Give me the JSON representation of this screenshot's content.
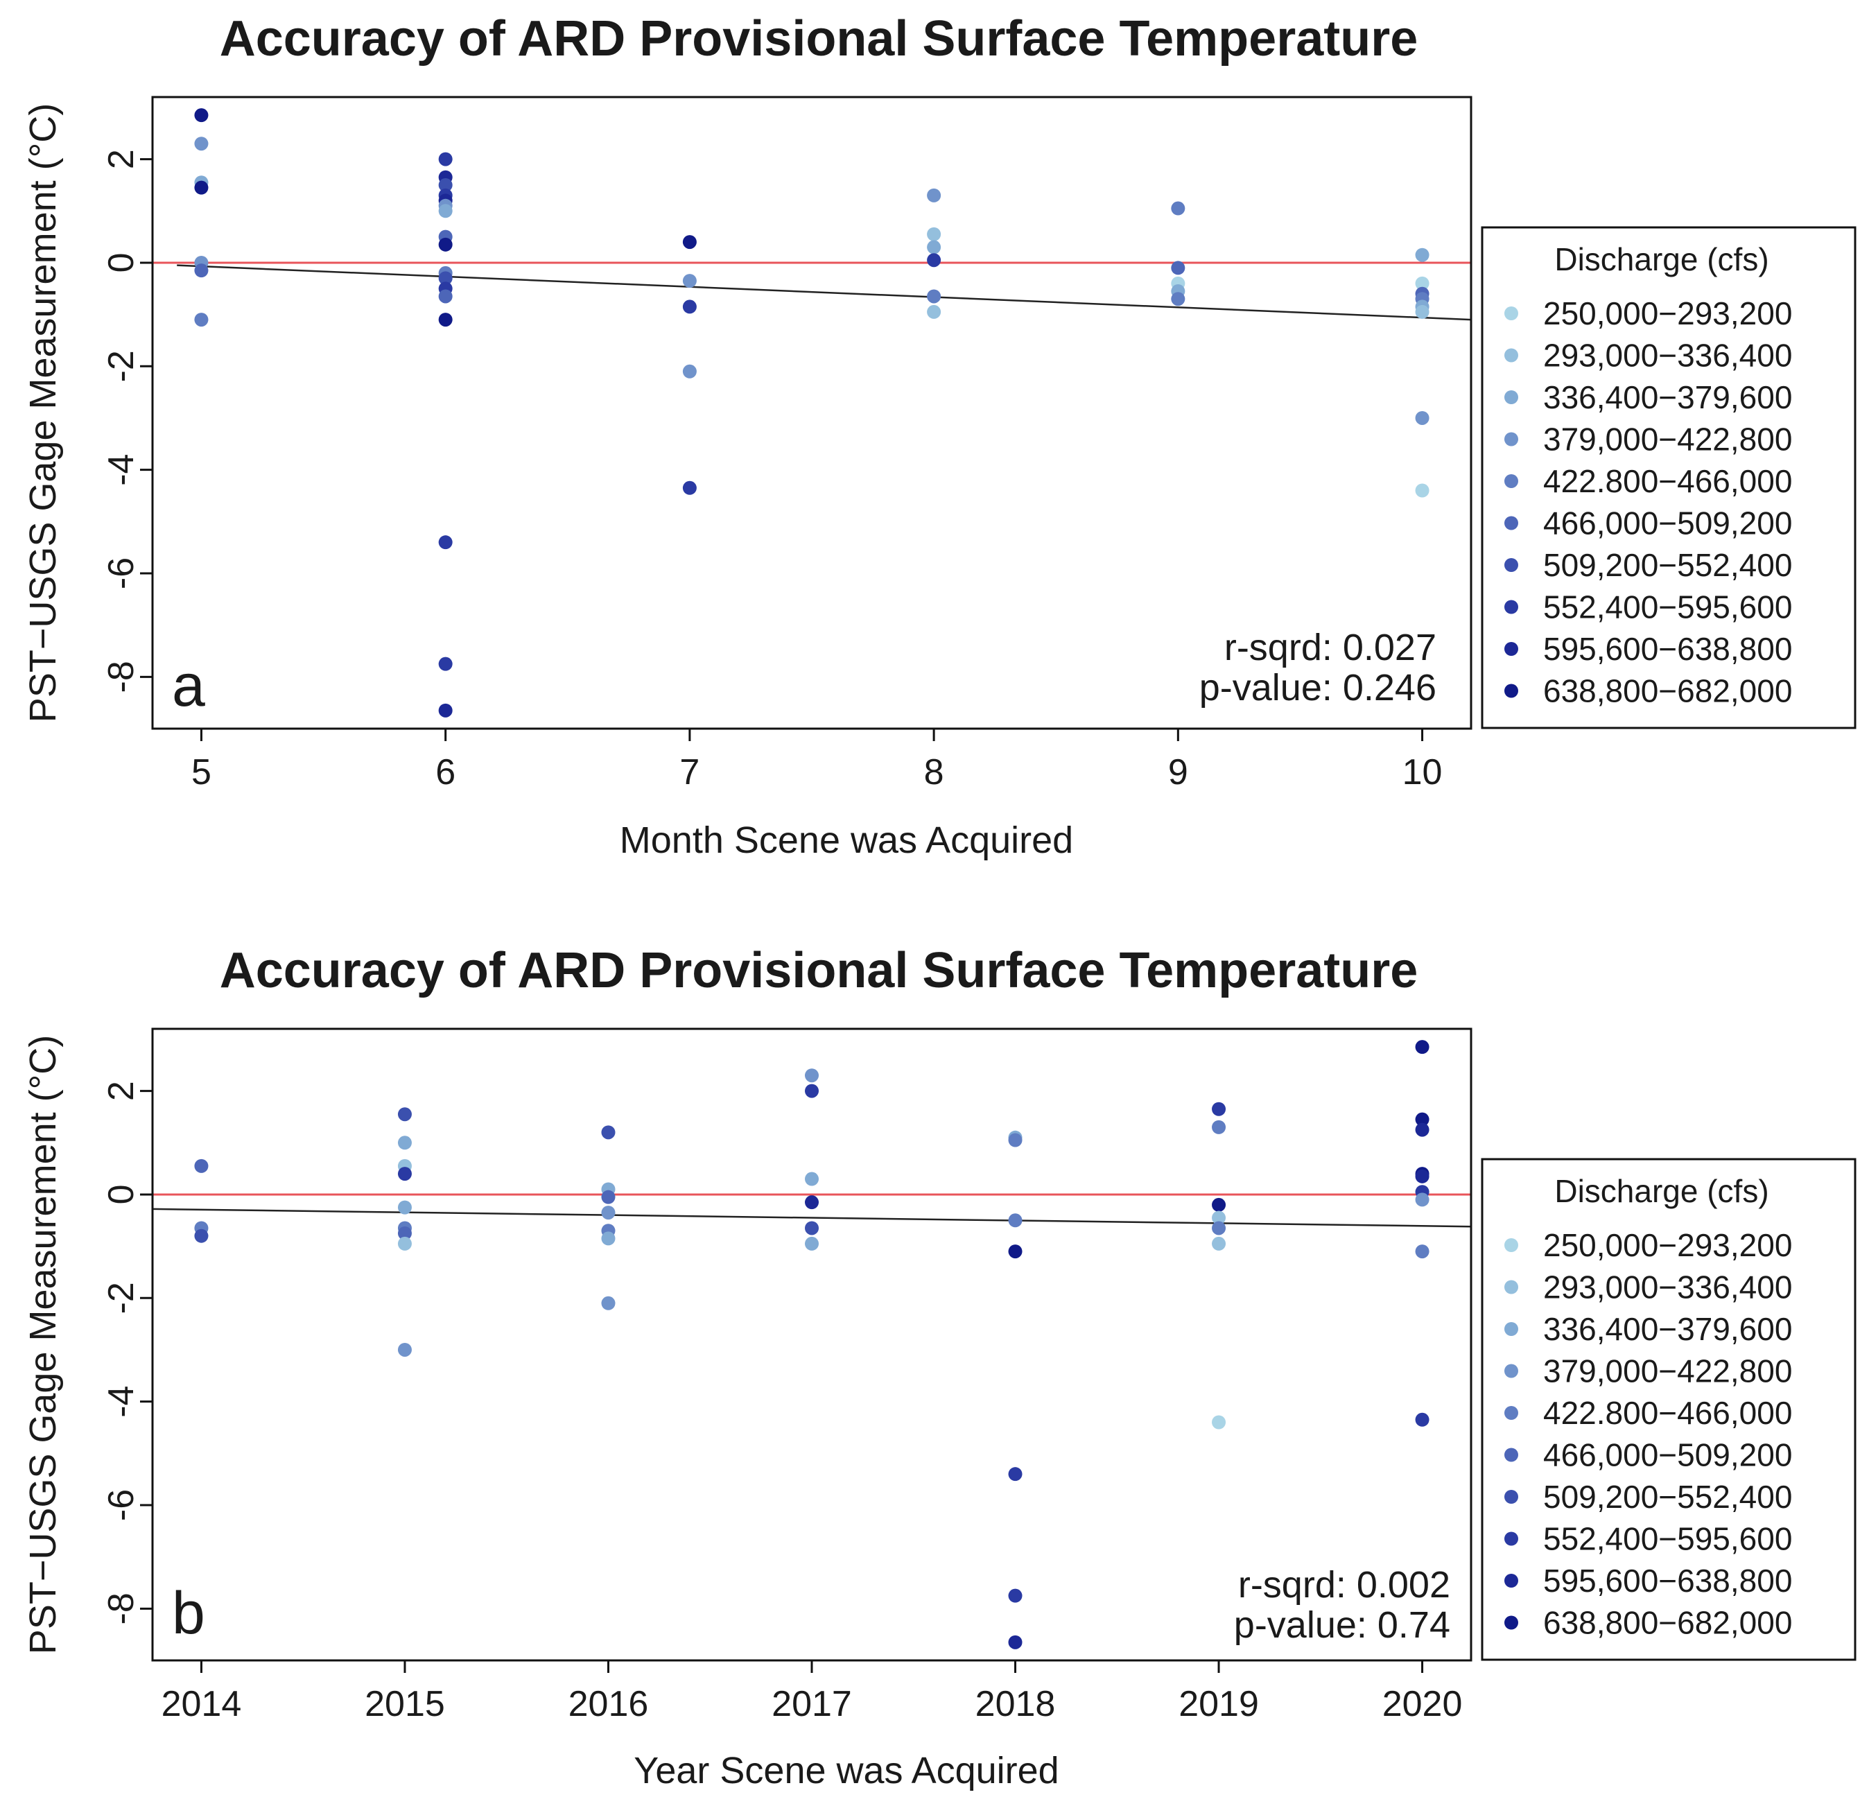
{
  "colors": {
    "zero_line": "#e8545a",
    "trend_line": "#222222",
    "frame": "#111111",
    "bins": [
      "#a9d4e6",
      "#94bfdd",
      "#80aad4",
      "#7093cb",
      "#5f7dc2",
      "#4d66b8",
      "#3b50ae",
      "#2a3aa3",
      "#1c2896",
      "#101a88"
    ]
  },
  "chart_data": [
    {
      "type": "scatter",
      "panel": "a",
      "title": "Accuracy of ARD Provisional Surface Temperature",
      "xlabel": "Month Scene was Acquired",
      "ylabel": "PST−USGS Gage Measurement (°C)",
      "xlim": [
        4.8,
        10.2
      ],
      "ylim": [
        -9.0,
        3.2
      ],
      "xticks": [
        {
          "value": 5,
          "label": "5"
        },
        {
          "value": 6,
          "label": "6"
        },
        {
          "value": 7,
          "label": "7"
        },
        {
          "value": 8,
          "label": "8"
        },
        {
          "value": 9,
          "label": "9"
        },
        {
          "value": 10,
          "label": "10"
        }
      ],
      "yticks": [
        {
          "value": 2,
          "label": "2"
        },
        {
          "value": 0,
          "label": "0"
        },
        {
          "value": -2,
          "label": "-2"
        },
        {
          "value": -4,
          "label": "-4"
        },
        {
          "value": -6,
          "label": "-6"
        },
        {
          "value": -8,
          "label": "-8"
        }
      ],
      "zero_line": 0,
      "trend": {
        "x": [
          4.9,
          10.2
        ],
        "y": [
          -0.05,
          -1.1
        ]
      },
      "stats": {
        "r_sqrd": "r-sqrd: 0.027",
        "p_value": "p-value: 0.246"
      },
      "legend": {
        "title": "Discharge (cfs)",
        "entries": [
          "250,000−293,200",
          "293,000−336,400",
          "336,400−379,600",
          "379,000−422,800",
          "422.800−466,000",
          "466,000−509,200",
          "509,200−552,400",
          "552,400−595,600",
          "595,600−638,800",
          "638,800−682,000"
        ]
      },
      "points": [
        {
          "x": 5,
          "y": 2.85,
          "bin": 9
        },
        {
          "x": 5,
          "y": 2.3,
          "bin": 3
        },
        {
          "x": 5,
          "y": 1.55,
          "bin": 2
        },
        {
          "x": 5,
          "y": 1.45,
          "bin": 9
        },
        {
          "x": 5,
          "y": 0.0,
          "bin": 3
        },
        {
          "x": 5,
          "y": -0.15,
          "bin": 5
        },
        {
          "x": 5,
          "y": -1.1,
          "bin": 4
        },
        {
          "x": 6,
          "y": 2.0,
          "bin": 7
        },
        {
          "x": 6,
          "y": 1.65,
          "bin": 8
        },
        {
          "x": 6,
          "y": 1.5,
          "bin": 6
        },
        {
          "x": 6,
          "y": 1.3,
          "bin": 7
        },
        {
          "x": 6,
          "y": 1.2,
          "bin": 8
        },
        {
          "x": 6,
          "y": 1.1,
          "bin": 3
        },
        {
          "x": 6,
          "y": 1.0,
          "bin": 2
        },
        {
          "x": 6,
          "y": 0.5,
          "bin": 5
        },
        {
          "x": 6,
          "y": 0.35,
          "bin": 9
        },
        {
          "x": 6,
          "y": -0.2,
          "bin": 4
        },
        {
          "x": 6,
          "y": -0.3,
          "bin": 6
        },
        {
          "x": 6,
          "y": -0.5,
          "bin": 7
        },
        {
          "x": 6,
          "y": -0.65,
          "bin": 5
        },
        {
          "x": 6,
          "y": -1.1,
          "bin": 9
        },
        {
          "x": 6,
          "y": -5.4,
          "bin": 7
        },
        {
          "x": 6,
          "y": -7.75,
          "bin": 7
        },
        {
          "x": 6,
          "y": -8.65,
          "bin": 8
        },
        {
          "x": 7,
          "y": 0.4,
          "bin": 9
        },
        {
          "x": 7,
          "y": -0.35,
          "bin": 3
        },
        {
          "x": 7,
          "y": -0.85,
          "bin": 7
        },
        {
          "x": 7,
          "y": -2.1,
          "bin": 3
        },
        {
          "x": 7,
          "y": -4.35,
          "bin": 7
        },
        {
          "x": 8,
          "y": 1.3,
          "bin": 3
        },
        {
          "x": 8,
          "y": 0.55,
          "bin": 1
        },
        {
          "x": 8,
          "y": 0.3,
          "bin": 2
        },
        {
          "x": 8,
          "y": 0.05,
          "bin": 7
        },
        {
          "x": 8,
          "y": -0.65,
          "bin": 4
        },
        {
          "x": 8,
          "y": -0.95,
          "bin": 1
        },
        {
          "x": 9,
          "y": 1.05,
          "bin": 4
        },
        {
          "x": 9,
          "y": -0.1,
          "bin": 5
        },
        {
          "x": 9,
          "y": -0.4,
          "bin": 0
        },
        {
          "x": 9,
          "y": -0.55,
          "bin": 2
        },
        {
          "x": 9,
          "y": -0.7,
          "bin": 4
        },
        {
          "x": 10,
          "y": 0.15,
          "bin": 2
        },
        {
          "x": 10,
          "y": -0.4,
          "bin": 0
        },
        {
          "x": 10,
          "y": -0.6,
          "bin": 5
        },
        {
          "x": 10,
          "y": -0.7,
          "bin": 4
        },
        {
          "x": 10,
          "y": -0.85,
          "bin": 2
        },
        {
          "x": 10,
          "y": -0.95,
          "bin": 1
        },
        {
          "x": 10,
          "y": -3.0,
          "bin": 3
        },
        {
          "x": 10,
          "y": -4.4,
          "bin": 0
        }
      ]
    },
    {
      "type": "scatter",
      "panel": "b",
      "title": "Accuracy of ARD Provisional Surface Temperature",
      "xlabel": "Year Scene was Acquired",
      "ylabel": "PST−USGS Gage Measurement (°C)",
      "xlim": [
        2013.76,
        2020.24
      ],
      "ylim": [
        -9.0,
        3.2
      ],
      "xticks": [
        {
          "value": 2014,
          "label": "2014"
        },
        {
          "value": 2015,
          "label": "2015"
        },
        {
          "value": 2016,
          "label": "2016"
        },
        {
          "value": 2017,
          "label": "2017"
        },
        {
          "value": 2018,
          "label": "2018"
        },
        {
          "value": 2019,
          "label": "2019"
        },
        {
          "value": 2020,
          "label": "2020"
        }
      ],
      "yticks": [
        {
          "value": 2,
          "label": "2"
        },
        {
          "value": 0,
          "label": "0"
        },
        {
          "value": -2,
          "label": "-2"
        },
        {
          "value": -4,
          "label": "-4"
        },
        {
          "value": -6,
          "label": "-6"
        },
        {
          "value": -8,
          "label": "-8"
        }
      ],
      "zero_line": 0,
      "trend": {
        "x": [
          2013.76,
          2020.24
        ],
        "y": [
          -0.28,
          -0.62
        ]
      },
      "stats": {
        "r_sqrd": "r-sqrd: 0.002",
        "p_value": "p-value: 0.74"
      },
      "legend": {
        "title": "Discharge (cfs)",
        "entries": [
          "250,000−293,200",
          "293,000−336,400",
          "336,400−379,600",
          "379,000−422,800",
          "422.800−466,000",
          "466,000−509,200",
          "509,200−552,400",
          "552,400−595,600",
          "595,600−638,800",
          "638,800−682,000"
        ]
      },
      "points": [
        {
          "x": 2014,
          "y": 0.55,
          "bin": 5
        },
        {
          "x": 2014,
          "y": -0.65,
          "bin": 4
        },
        {
          "x": 2014,
          "y": -0.8,
          "bin": 6
        },
        {
          "x": 2015,
          "y": 1.55,
          "bin": 6
        },
        {
          "x": 2015,
          "y": 1.0,
          "bin": 2
        },
        {
          "x": 2015,
          "y": 0.55,
          "bin": 1
        },
        {
          "x": 2015,
          "y": 0.4,
          "bin": 7
        },
        {
          "x": 2015,
          "y": -0.25,
          "bin": 2
        },
        {
          "x": 2015,
          "y": -0.65,
          "bin": 4
        },
        {
          "x": 2015,
          "y": -0.75,
          "bin": 5
        },
        {
          "x": 2015,
          "y": -0.95,
          "bin": 1
        },
        {
          "x": 2015,
          "y": -3.0,
          "bin": 3
        },
        {
          "x": 2016,
          "y": 1.2,
          "bin": 6
        },
        {
          "x": 2016,
          "y": 0.1,
          "bin": 2
        },
        {
          "x": 2016,
          "y": -0.05,
          "bin": 5
        },
        {
          "x": 2016,
          "y": -0.35,
          "bin": 3
        },
        {
          "x": 2016,
          "y": -0.7,
          "bin": 4
        },
        {
          "x": 2016,
          "y": -0.85,
          "bin": 2
        },
        {
          "x": 2016,
          "y": -2.1,
          "bin": 3
        },
        {
          "x": 2017,
          "y": 2.3,
          "bin": 3
        },
        {
          "x": 2017,
          "y": 2.0,
          "bin": 7
        },
        {
          "x": 2017,
          "y": 0.3,
          "bin": 2
        },
        {
          "x": 2017,
          "y": -0.15,
          "bin": 8
        },
        {
          "x": 2017,
          "y": -0.65,
          "bin": 6
        },
        {
          "x": 2017,
          "y": -0.95,
          "bin": 2
        },
        {
          "x": 2018,
          "y": 1.1,
          "bin": 2
        },
        {
          "x": 2018,
          "y": 1.05,
          "bin": 4
        },
        {
          "x": 2018,
          "y": -0.5,
          "bin": 4
        },
        {
          "x": 2018,
          "y": -1.1,
          "bin": 9
        },
        {
          "x": 2018,
          "y": -5.4,
          "bin": 7
        },
        {
          "x": 2018,
          "y": -7.75,
          "bin": 7
        },
        {
          "x": 2018,
          "y": -8.65,
          "bin": 8
        },
        {
          "x": 2019,
          "y": 1.65,
          "bin": 7
        },
        {
          "x": 2019,
          "y": 1.3,
          "bin": 4
        },
        {
          "x": 2019,
          "y": -0.2,
          "bin": 9
        },
        {
          "x": 2019,
          "y": -0.45,
          "bin": 1
        },
        {
          "x": 2019,
          "y": -0.65,
          "bin": 4
        },
        {
          "x": 2019,
          "y": -0.95,
          "bin": 1
        },
        {
          "x": 2019,
          "y": -4.4,
          "bin": 0
        },
        {
          "x": 2020,
          "y": 2.85,
          "bin": 9
        },
        {
          "x": 2020,
          "y": 1.45,
          "bin": 9
        },
        {
          "x": 2020,
          "y": 1.25,
          "bin": 8
        },
        {
          "x": 2020,
          "y": 0.4,
          "bin": 9
        },
        {
          "x": 2020,
          "y": 0.35,
          "bin": 8
        },
        {
          "x": 2020,
          "y": 0.05,
          "bin": 7
        },
        {
          "x": 2020,
          "y": -0.1,
          "bin": 3
        },
        {
          "x": 2020,
          "y": -1.1,
          "bin": 4
        },
        {
          "x": 2020,
          "y": -4.35,
          "bin": 7
        }
      ]
    }
  ]
}
